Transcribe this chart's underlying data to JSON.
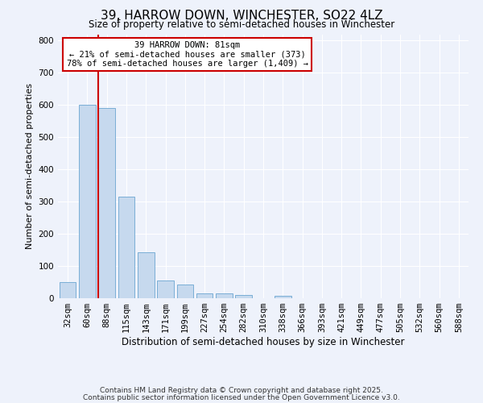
{
  "title": "39, HARROW DOWN, WINCHESTER, SO22 4LZ",
  "subtitle": "Size of property relative to semi-detached houses in Winchester",
  "xlabel": "Distribution of semi-detached houses by size in Winchester",
  "ylabel": "Number of semi-detached properties",
  "categories": [
    "32sqm",
    "60sqm",
    "88sqm",
    "115sqm",
    "143sqm",
    "171sqm",
    "199sqm",
    "227sqm",
    "254sqm",
    "282sqm",
    "310sqm",
    "338sqm",
    "366sqm",
    "393sqm",
    "421sqm",
    "449sqm",
    "477sqm",
    "505sqm",
    "532sqm",
    "560sqm",
    "588sqm"
  ],
  "values": [
    50,
    600,
    590,
    315,
    143,
    55,
    43,
    16,
    14,
    10,
    0,
    7,
    0,
    0,
    0,
    0,
    0,
    0,
    0,
    0,
    0
  ],
  "bar_color": "#c6d9ee",
  "bar_edge_color": "#7aaed6",
  "vline_color": "#cc0000",
  "annotation_title": "39 HARROW DOWN: 81sqm",
  "annotation_line1": "← 21% of semi-detached houses are smaller (373)",
  "annotation_line2": "78% of semi-detached houses are larger (1,409) →",
  "annotation_box_edgecolor": "#cc0000",
  "annotation_bg": "#ffffff",
  "ylim": [
    0,
    820
  ],
  "yticks": [
    0,
    100,
    200,
    300,
    400,
    500,
    600,
    700,
    800
  ],
  "footer1": "Contains HM Land Registry data © Crown copyright and database right 2025.",
  "footer2": "Contains public sector information licensed under the Open Government Licence v3.0.",
  "background_color": "#eef2fb",
  "plot_background": "#eef2fb",
  "title_fontsize": 11,
  "subtitle_fontsize": 8.5,
  "ylabel_fontsize": 8,
  "xlabel_fontsize": 8.5,
  "tick_fontsize": 7.5,
  "footer_fontsize": 6.5,
  "annot_fontsize": 7.5
}
